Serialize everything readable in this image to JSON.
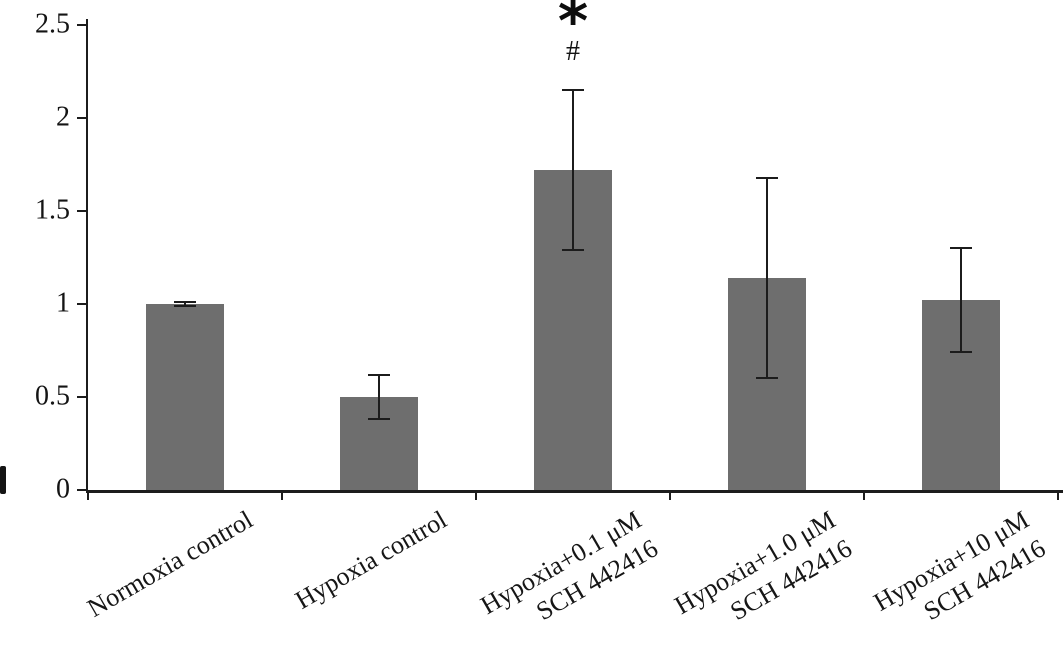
{
  "chart_data": {
    "type": "bar",
    "title": "",
    "xlabel": "",
    "ylabel": "",
    "categories": [
      [
        "Normoxia control"
      ],
      [
        "Hypoxia control"
      ],
      [
        "Hypoxia+0.1 μM",
        "SCH 442416"
      ],
      [
        "Hypoxia+1.0 μM",
        "SCH 442416"
      ],
      [
        "Hypoxia+10 μM",
        "SCH 442416"
      ]
    ],
    "values": [
      1.0,
      0.5,
      1.72,
      1.14,
      1.02
    ],
    "error_bars": [
      0.01,
      0.12,
      0.43,
      0.54,
      0.28
    ],
    "ylim": [
      0,
      2.5
    ],
    "yticks": [
      "0",
      "0.5",
      "1",
      "1.5",
      "2",
      "2.5"
    ],
    "ytick_values": [
      0,
      0.5,
      1,
      1.5,
      2,
      2.5
    ],
    "grid": false,
    "legend": "none",
    "bar_color": "#6e6e6e",
    "axis_color": "#1c1c1c",
    "annotations": [
      {
        "category_index": 2,
        "star": "*",
        "hash": "#"
      }
    ]
  }
}
